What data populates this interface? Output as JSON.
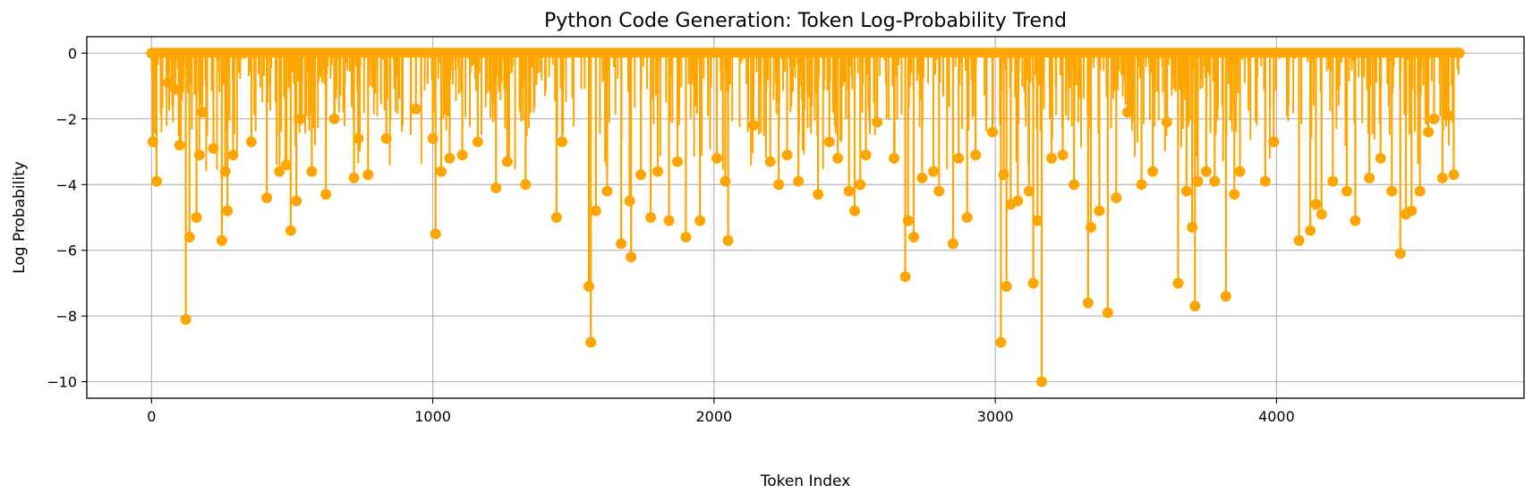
{
  "chart_data": {
    "type": "line",
    "title": "Python Code Generation: Token Log-Probability Trend",
    "xlabel": "Token Index",
    "ylabel": "Log Probability",
    "xlim": [
      -230,
      4880
    ],
    "ylim": [
      -10.5,
      0.5
    ],
    "x_ticks": [
      0,
      1000,
      2000,
      3000,
      4000
    ],
    "y_ticks": [
      0,
      -2,
      -4,
      -6,
      -8,
      -10
    ],
    "x_tick_labels": [
      "0",
      "1000",
      "2000",
      "3000",
      "4000"
    ],
    "y_tick_labels": [
      "0",
      "−2",
      "−4",
      "−6",
      "−8",
      "−10"
    ],
    "grid": true,
    "color": "#FFA500",
    "marker": "circle",
    "n_tokens": 4650,
    "series": [
      {
        "x": [
          0,
          5,
          18,
          60,
          85,
          100,
          122,
          135,
          160,
          170,
          180,
          220,
          250,
          262,
          270,
          290,
          355,
          410,
          455,
          480,
          495,
          515,
          530,
          570,
          620,
          650,
          720,
          735,
          770,
          835,
          940,
          1000,
          1010,
          1030,
          1060,
          1105,
          1160,
          1225,
          1265,
          1330,
          1440,
          1460,
          1555,
          1562,
          1580,
          1620,
          1670,
          1700,
          1705,
          1740,
          1775,
          1800,
          1840,
          1870,
          1900,
          1950,
          2010,
          2040,
          2050,
          2140,
          2200,
          2230,
          2260,
          2300,
          2370,
          2410,
          2440,
          2480,
          2500,
          2520,
          2540,
          2580,
          2640,
          2680,
          2690,
          2710,
          2740,
          2780,
          2800,
          2850,
          2870,
          2900,
          2930,
          2990,
          3020,
          3030,
          3040,
          3055,
          3080,
          3120,
          3135,
          3150,
          3165,
          3200,
          3240,
          3280,
          3330,
          3340,
          3370,
          3400,
          3430,
          3470,
          3520,
          3560,
          3610,
          3650,
          3680,
          3700,
          3710,
          3720,
          3750,
          3780,
          3820,
          3850,
          3870,
          3960,
          3990,
          4080,
          4120,
          4140,
          4160,
          4200,
          4250,
          4280,
          4330,
          4370,
          4410,
          4440,
          4460,
          4480,
          4510,
          4540,
          4560,
          4590,
          4610,
          4630,
          4650
        ],
        "values": [
          0,
          -2.7,
          -3.9,
          -0.9,
          -1.1,
          -2.8,
          -8.1,
          -5.6,
          -5.0,
          -3.1,
          -1.8,
          -2.9,
          -5.7,
          -3.6,
          -4.8,
          -3.1,
          -2.7,
          -4.4,
          -3.6,
          -3.4,
          -5.4,
          -4.5,
          -2.0,
          -3.6,
          -4.3,
          -2.0,
          -3.8,
          -2.6,
          -3.7,
          -2.6,
          -1.7,
          -2.6,
          -5.5,
          -3.6,
          -3.2,
          -3.1,
          -2.7,
          -4.1,
          -3.3,
          -4.0,
          -5.0,
          -2.7,
          -7.1,
          -8.8,
          -4.8,
          -4.2,
          -5.8,
          -4.5,
          -6.2,
          -3.7,
          -5.0,
          -3.6,
          -5.1,
          -3.3,
          -5.6,
          -5.1,
          -3.2,
          -3.9,
          -5.7,
          -2.2,
          -3.3,
          -4.0,
          -3.1,
          -3.9,
          -4.3,
          -2.7,
          -3.2,
          -4.2,
          -4.8,
          -4.0,
          -3.1,
          -2.1,
          -3.2,
          -6.8,
          -5.1,
          -5.6,
          -3.8,
          -3.6,
          -4.2,
          -5.8,
          -3.2,
          -5.0,
          -3.1,
          -2.4,
          -8.8,
          -3.7,
          -7.1,
          -4.6,
          -4.5,
          -4.2,
          -7.0,
          -5.1,
          -10.0,
          -3.2,
          -3.1,
          -4.0,
          -7.6,
          -5.3,
          -4.8,
          -7.9,
          -4.4,
          -1.8,
          -4.0,
          -3.6,
          -2.1,
          -7.0,
          -4.2,
          -5.3,
          -7.7,
          -3.9,
          -3.6,
          -3.9,
          -7.4,
          -4.3,
          -3.6,
          -3.9,
          -2.7,
          -5.7,
          -5.4,
          -4.6,
          -4.9,
          -3.9,
          -4.2,
          -5.1,
          -3.8,
          -3.2,
          -4.2,
          -6.1,
          -4.9,
          -4.8,
          -4.2,
          -2.4,
          -2.0,
          -3.8,
          -1.9,
          -3.7,
          0
        ]
      }
    ]
  }
}
